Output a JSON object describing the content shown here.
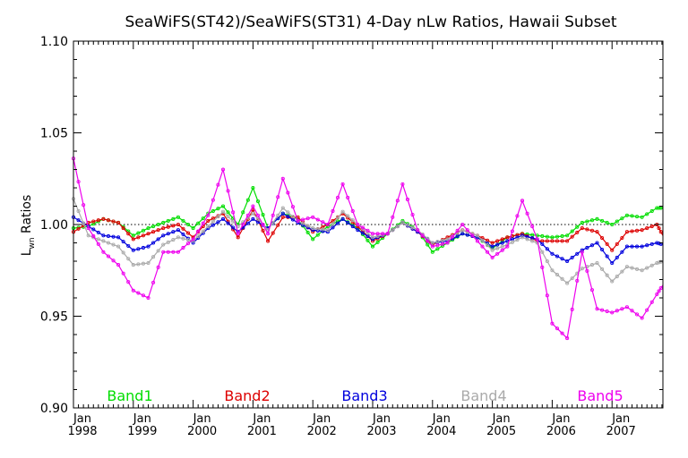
{
  "chart_data": {
    "type": "line",
    "title": "SeaWiFS(ST42)/SeaWiFS(ST31) 4-Day nLw Ratios, Hawaii Subset",
    "ylabel_main": "L",
    "ylabel_sub": "wn",
    "ylabel_rest": " Ratios",
    "ylim": [
      0.9,
      1.1
    ],
    "yticks": [
      "0.90",
      "0.95",
      "1.00",
      "1.05",
      "1.10"
    ],
    "xlim": [
      1998.0,
      2007.85
    ],
    "xticks": [
      {
        "month": "Jan",
        "year": "1998",
        "x": 1998.0
      },
      {
        "month": "Jan",
        "year": "1999",
        "x": 1999.0
      },
      {
        "month": "Jan",
        "year": "2000",
        "x": 2000.0
      },
      {
        "month": "Jan",
        "year": "2001",
        "x": 2001.0
      },
      {
        "month": "Jan",
        "year": "2002",
        "x": 2002.0
      },
      {
        "month": "Jan",
        "year": "2003",
        "x": 2003.0
      },
      {
        "month": "Jan",
        "year": "2004",
        "x": 2004.0
      },
      {
        "month": "Jan",
        "year": "2005",
        "x": 2005.0
      },
      {
        "month": "Jan",
        "year": "2006",
        "x": 2006.0
      },
      {
        "month": "Jan",
        "year": "2007",
        "x": 2007.0
      }
    ],
    "reference_line": 1.0,
    "series": [
      {
        "name": "Band1",
        "color": "#00dd00",
        "x": [
          1998.0,
          1998.25,
          1998.5,
          1998.75,
          1999.0,
          1999.25,
          1999.5,
          1999.75,
          2000.0,
          2000.25,
          2000.5,
          2000.75,
          2001.0,
          2001.25,
          2001.5,
          2001.75,
          2002.0,
          2002.25,
          2002.5,
          2002.75,
          2003.0,
          2003.25,
          2003.5,
          2003.75,
          2004.0,
          2004.25,
          2004.5,
          2004.75,
          2005.0,
          2005.25,
          2005.5,
          2005.75,
          2006.0,
          2006.25,
          2006.5,
          2006.75,
          2007.0,
          2007.25,
          2007.5,
          2007.75,
          2007.85
        ],
        "y": [
          0.998,
          0.999,
          1.003,
          1.001,
          0.994,
          0.998,
          1.001,
          1.004,
          0.998,
          1.006,
          1.01,
          1.0,
          1.02,
          0.998,
          1.006,
          1.003,
          0.992,
          0.999,
          1.003,
          0.998,
          0.988,
          0.995,
          1.002,
          0.997,
          0.985,
          0.99,
          0.995,
          0.993,
          0.987,
          0.993,
          0.995,
          0.994,
          0.993,
          0.994,
          1.001,
          1.003,
          1.0,
          1.005,
          1.004,
          1.009,
          1.009
        ]
      },
      {
        "name": "Band2",
        "color": "#dd0000",
        "x": [
          1998.0,
          1998.25,
          1998.5,
          1998.75,
          1999.0,
          1999.25,
          1999.5,
          1999.75,
          2000.0,
          2000.25,
          2000.5,
          2000.75,
          2001.0,
          2001.25,
          2001.5,
          2001.75,
          2002.0,
          2002.25,
          2002.5,
          2002.75,
          2003.0,
          2003.25,
          2003.5,
          2003.75,
          2004.0,
          2004.25,
          2004.5,
          2004.75,
          2005.0,
          2005.25,
          2005.5,
          2005.75,
          2006.0,
          2006.25,
          2006.5,
          2006.75,
          2007.0,
          2007.25,
          2007.5,
          2007.75,
          2007.85
        ],
        "y": [
          0.996,
          1.001,
          1.003,
          1.001,
          0.992,
          0.995,
          0.998,
          1.0,
          0.993,
          1.002,
          1.006,
          0.993,
          1.008,
          0.991,
          1.004,
          1.004,
          0.996,
          1.0,
          1.006,
          0.999,
          0.991,
          0.995,
          1.001,
          0.996,
          0.989,
          0.993,
          0.997,
          0.994,
          0.99,
          0.993,
          0.995,
          0.991,
          0.991,
          0.991,
          0.998,
          0.996,
          0.986,
          0.996,
          0.997,
          1.0,
          0.994
        ]
      },
      {
        "name": "Band3",
        "color": "#0000dd",
        "x": [
          1998.0,
          1998.25,
          1998.5,
          1998.75,
          1999.0,
          1999.25,
          1999.5,
          1999.75,
          2000.0,
          2000.25,
          2000.5,
          2000.75,
          2001.0,
          2001.25,
          2001.5,
          2001.75,
          2002.0,
          2002.25,
          2002.5,
          2002.75,
          2003.0,
          2003.25,
          2003.5,
          2003.75,
          2004.0,
          2004.25,
          2004.5,
          2004.75,
          2005.0,
          2005.25,
          2005.5,
          2005.75,
          2006.0,
          2006.25,
          2006.5,
          2006.75,
          2007.0,
          2007.25,
          2007.5,
          2007.75,
          2007.85
        ],
        "y": [
          1.004,
          0.999,
          0.994,
          0.993,
          0.986,
          0.988,
          0.994,
          0.997,
          0.99,
          0.998,
          1.003,
          0.996,
          1.003,
          0.998,
          1.006,
          1.001,
          0.997,
          0.996,
          1.003,
          0.997,
          0.992,
          0.995,
          1.001,
          0.996,
          0.99,
          0.991,
          0.995,
          0.993,
          0.988,
          0.991,
          0.994,
          0.992,
          0.984,
          0.98,
          0.986,
          0.99,
          0.979,
          0.988,
          0.988,
          0.99,
          0.989
        ]
      },
      {
        "name": "Band4",
        "color": "#aaaaaa",
        "x": [
          1998.0,
          1998.25,
          1998.5,
          1998.75,
          1999.0,
          1999.25,
          1999.5,
          1999.75,
          2000.0,
          2000.25,
          2000.5,
          2000.75,
          2001.0,
          2001.25,
          2001.5,
          2001.75,
          2002.0,
          2002.25,
          2002.5,
          2002.75,
          2003.0,
          2003.25,
          2003.5,
          2003.75,
          2004.0,
          2004.25,
          2004.5,
          2004.75,
          2005.0,
          2005.25,
          2005.5,
          2005.75,
          2006.0,
          2006.25,
          2006.5,
          2006.75,
          2007.0,
          2007.25,
          2007.5,
          2007.75,
          2007.85
        ],
        "y": [
          1.014,
          0.994,
          0.991,
          0.988,
          0.978,
          0.979,
          0.989,
          0.993,
          0.991,
          0.999,
          1.007,
          0.999,
          1.006,
          0.997,
          1.009,
          1.002,
          0.998,
          0.997,
          1.007,
          1.0,
          0.993,
          0.995,
          1.001,
          0.997,
          0.99,
          0.992,
          0.997,
          0.994,
          0.986,
          0.989,
          0.993,
          0.99,
          0.975,
          0.968,
          0.976,
          0.979,
          0.969,
          0.977,
          0.975,
          0.979,
          0.98
        ]
      },
      {
        "name": "Band5",
        "color": "#ee00ee",
        "x": [
          1998.0,
          1998.25,
          1998.5,
          1998.75,
          1999.0,
          1999.25,
          1999.5,
          1999.75,
          2000.0,
          2000.25,
          2000.5,
          2000.75,
          2001.0,
          2001.25,
          2001.5,
          2001.75,
          2002.0,
          2002.25,
          2002.5,
          2002.75,
          2003.0,
          2003.25,
          2003.5,
          2003.75,
          2004.0,
          2004.25,
          2004.5,
          2004.75,
          2005.0,
          2005.25,
          2005.5,
          2005.75,
          2006.0,
          2006.25,
          2006.5,
          2006.75,
          2007.0,
          2007.25,
          2007.5,
          2007.75,
          2007.85
        ],
        "y": [
          1.036,
          0.998,
          0.985,
          0.978,
          0.964,
          0.96,
          0.985,
          0.985,
          0.992,
          1.005,
          1.03,
          0.995,
          1.01,
          0.995,
          1.025,
          1.002,
          1.004,
          1.0,
          1.022,
          1.0,
          0.995,
          0.995,
          1.022,
          0.997,
          0.988,
          0.99,
          1.0,
          0.991,
          0.982,
          0.988,
          1.013,
          0.992,
          0.946,
          0.938,
          0.985,
          0.954,
          0.952,
          0.955,
          0.949,
          0.962,
          0.967
        ]
      }
    ],
    "legend_placement": "bottom-inside"
  }
}
